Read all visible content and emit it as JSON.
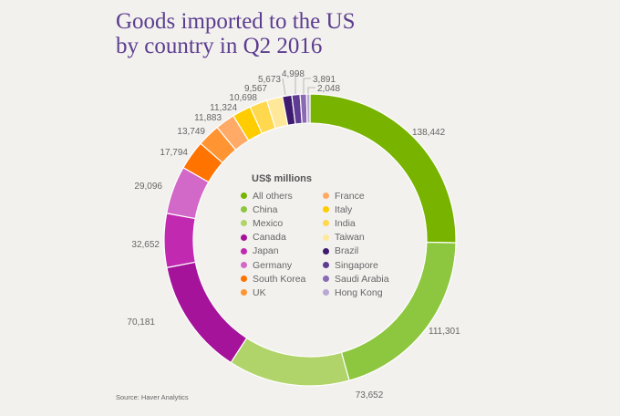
{
  "chart_data": {
    "type": "pie",
    "title": "Goods imported to the US by country in Q2 2016",
    "title_lines": [
      "Goods imported to the US",
      "by country in Q2 2016"
    ],
    "legend_title": "US$ millions",
    "legend_placement": "center",
    "source": "Source: Haver Analytics",
    "slices": [
      {
        "name": "All others",
        "value": 138442,
        "label": "138,442",
        "color": "#78b300"
      },
      {
        "name": "China",
        "value": 111301,
        "label": "111,301",
        "color": "#8dc63f"
      },
      {
        "name": "Mexico",
        "value": 73652,
        "label": "73,652",
        "color": "#b1d46a"
      },
      {
        "name": "Canada",
        "value": 70181,
        "label": "70,181",
        "color": "#a4139a"
      },
      {
        "name": "Japan",
        "value": 32652,
        "label": "32,652",
        "color": "#c12ab0"
      },
      {
        "name": "Germany",
        "value": 29096,
        "label": "29,096",
        "color": "#d268c8"
      },
      {
        "name": "South Korea",
        "value": 17794,
        "label": "17,794",
        "color": "#ff7300"
      },
      {
        "name": "UK",
        "value": 13749,
        "label": "13,749",
        "color": "#ff9433"
      },
      {
        "name": "France",
        "value": 11883,
        "label": "11,883",
        "color": "#ffaa66"
      },
      {
        "name": "Italy",
        "value": 11324,
        "label": "11,324",
        "color": "#ffcc00"
      },
      {
        "name": "India",
        "value": 10698,
        "label": "10,698",
        "color": "#ffd84d"
      },
      {
        "name": "Taiwan",
        "value": 9567,
        "label": "9,567",
        "color": "#ffe899"
      },
      {
        "name": "Brazil",
        "value": 5673,
        "label": "5,673",
        "color": "#3e1b6e"
      },
      {
        "name": "Singapore",
        "value": 4998,
        "label": "4,998",
        "color": "#5f3c93"
      },
      {
        "name": "Saudi Arabia",
        "value": 3891,
        "label": "3,891",
        "color": "#8a6bb3"
      },
      {
        "name": "Hong Kong",
        "value": 2048,
        "label": "2,048",
        "color": "#b9a8d3"
      }
    ]
  }
}
